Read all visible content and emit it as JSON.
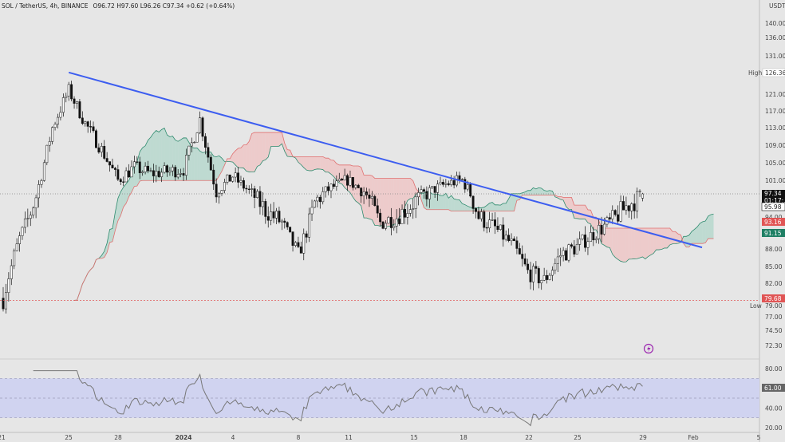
{
  "legend": {
    "symbol": "SOL / TetherUS, 4h, BINANCE",
    "ohlc": "O96.72 H97.60 L96.26 C97.34 +0.62 (+0.64%)"
  },
  "currency_label": "USDT",
  "price_ticks": [
    "140.00",
    "136.00",
    "131.00",
    "126.36",
    "121.00",
    "117.00",
    "113.00",
    "109.00",
    "105.00",
    "101.00",
    "97.34",
    "95.98",
    "94.00",
    "93.16",
    "91.15",
    "88.00",
    "85.00",
    "82.00",
    "79.68",
    "79.00",
    "77.00",
    "74.50",
    "72.30"
  ],
  "time_ticks": [
    "21",
    "25",
    "28",
    "2024",
    "4",
    "8",
    "11",
    "15",
    "18",
    "22",
    "25",
    "29",
    "Feb",
    "5"
  ],
  "high": {
    "label": "High",
    "value": 126.36
  },
  "low": {
    "label": "Low",
    "value": 79.0
  },
  "last_price": {
    "value": "97.34",
    "countdown": "01:17:..."
  },
  "tags": {
    "kijun": {
      "value": "95.98",
      "color": "#ffffff"
    },
    "span_a": {
      "value": "93.16",
      "color": "#e05555"
    },
    "span_b": {
      "value": "91.15",
      "color": "#1e7f64"
    },
    "low_line": {
      "value": "79.68",
      "color": "#e05555"
    }
  },
  "rsi": {
    "ticks": [
      "80.00",
      "61.00",
      "60.00",
      "40.00",
      "20.00"
    ],
    "current": "61.00",
    "upper": 70,
    "lower": 30
  },
  "colors": {
    "trendline": "#3c5df0",
    "cloud_bull": "#9ccfbf",
    "cloud_bear": "#f2b4b4",
    "candle": "#111111",
    "rsi_band": "#d0d3f0",
    "rsi_line": "#777777"
  },
  "chart_data": {
    "type": "candlestick",
    "timeframe": "4h",
    "ylim": [
      69.5,
      144.0
    ],
    "x_range": [
      "2023-12-21",
      "2024-02-05"
    ],
    "trendline": [
      {
        "date": "2023-12-25",
        "price": 126.4
      },
      {
        "date": "2024-01-29",
        "price": 91.5
      }
    ],
    "close_path": [
      [
        "2023-12-21",
        80.0
      ],
      [
        "2023-12-22",
        90.0
      ],
      [
        "2023-12-23",
        97.0
      ],
      [
        "2023-12-24",
        113.0
      ],
      [
        "2023-12-25",
        122.0
      ],
      [
        "2023-12-26",
        114.0
      ],
      [
        "2023-12-27",
        108.0
      ],
      [
        "2023-12-28",
        101.0
      ],
      [
        "2023-12-29",
        104.0
      ],
      [
        "2023-12-30",
        102.5
      ],
      [
        "2023-12-31",
        103.0
      ],
      [
        "2024-01-01",
        103.5
      ],
      [
        "2024-01-02",
        115.0
      ],
      [
        "2024-01-03",
        98.0
      ],
      [
        "2024-01-04",
        102.0
      ],
      [
        "2024-01-05",
        98.0
      ],
      [
        "2024-01-06",
        95.0
      ],
      [
        "2024-01-07",
        93.0
      ],
      [
        "2024-01-08",
        87.0
      ],
      [
        "2024-01-09",
        96.0
      ],
      [
        "2024-01-10",
        99.0
      ],
      [
        "2024-01-11",
        101.0
      ],
      [
        "2024-01-12",
        98.0
      ],
      [
        "2024-01-13",
        93.0
      ],
      [
        "2024-01-14",
        94.0
      ],
      [
        "2024-01-15",
        96.0
      ],
      [
        "2024-01-16",
        98.0
      ],
      [
        "2024-01-17",
        100.0
      ],
      [
        "2024-01-18",
        101.0
      ],
      [
        "2024-01-19",
        94.0
      ],
      [
        "2024-01-20",
        92.0
      ],
      [
        "2024-01-21",
        89.0
      ],
      [
        "2024-01-22",
        84.0
      ],
      [
        "2024-01-23",
        82.5
      ],
      [
        "2024-01-24",
        87.0
      ],
      [
        "2024-01-25",
        88.5
      ],
      [
        "2024-01-26",
        91.0
      ],
      [
        "2024-01-27",
        93.0
      ],
      [
        "2024-01-28",
        95.5
      ],
      [
        "2024-01-29",
        97.34
      ]
    ]
  }
}
